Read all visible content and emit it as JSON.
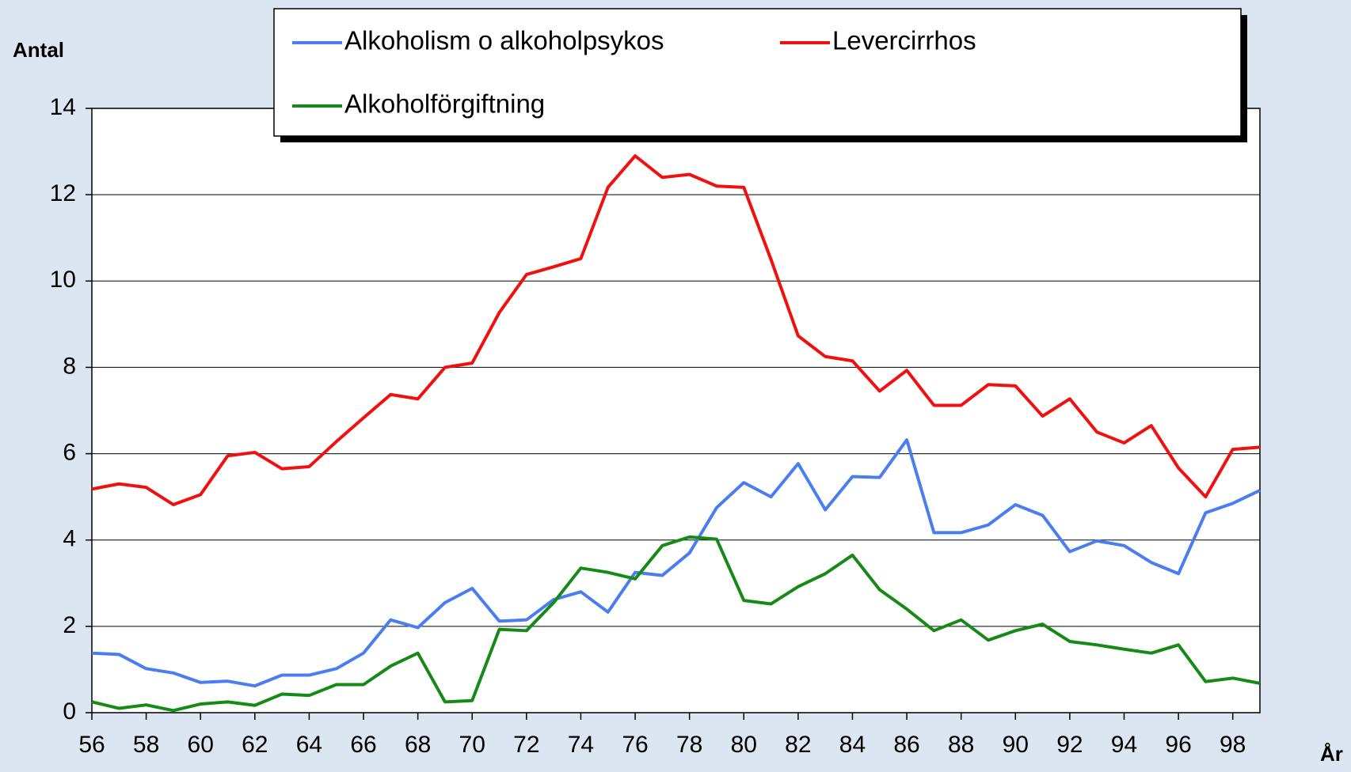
{
  "chart_data": {
    "type": "line",
    "x_axis_label": "År",
    "y_axis_label": "Antal",
    "x": [
      56,
      57,
      58,
      59,
      60,
      61,
      62,
      63,
      64,
      65,
      66,
      67,
      68,
      69,
      70,
      71,
      72,
      73,
      74,
      75,
      76,
      77,
      78,
      79,
      80,
      81,
      82,
      83,
      84,
      85,
      86,
      87,
      88,
      89,
      90,
      91,
      92,
      93,
      94,
      95,
      96,
      97,
      98,
      99
    ],
    "series": [
      {
        "name": "Alkoholism o alkoholpsykos",
        "color": "#4a7ef0",
        "values": [
          1.38,
          1.35,
          1.02,
          0.92,
          0.7,
          0.73,
          0.62,
          0.87,
          0.87,
          1.02,
          1.38,
          2.15,
          1.97,
          2.55,
          2.88,
          2.12,
          2.15,
          2.62,
          2.8,
          2.33,
          3.25,
          3.18,
          3.7,
          4.75,
          5.33,
          5.0,
          5.77,
          4.7,
          5.47,
          5.45,
          6.32,
          4.17,
          4.17,
          4.35,
          4.82,
          4.57,
          3.73,
          3.98,
          3.87,
          3.48,
          3.22,
          4.63,
          4.85,
          5.15
        ]
      },
      {
        "name": "Levercirrhos",
        "color": "#f01010",
        "values": [
          5.18,
          5.3,
          5.22,
          4.82,
          5.05,
          5.95,
          6.03,
          5.65,
          5.7,
          6.28,
          6.83,
          7.37,
          7.27,
          8.0,
          8.1,
          9.27,
          10.15,
          10.33,
          10.52,
          12.17,
          12.9,
          12.4,
          12.47,
          12.2,
          12.17,
          10.5,
          8.73,
          8.25,
          8.15,
          7.45,
          7.93,
          7.12,
          7.12,
          7.6,
          7.57,
          6.87,
          7.27,
          6.5,
          6.25,
          6.65,
          5.67,
          5.0,
          6.1,
          6.15
        ]
      },
      {
        "name": "Alkoholförgiftning",
        "color": "#168a16",
        "values": [
          0.25,
          0.1,
          0.18,
          0.05,
          0.2,
          0.25,
          0.17,
          0.43,
          0.4,
          0.65,
          0.65,
          1.08,
          1.38,
          0.25,
          0.28,
          1.93,
          1.9,
          2.55,
          3.35,
          3.25,
          3.1,
          3.87,
          4.07,
          4.02,
          2.6,
          2.52,
          2.92,
          3.22,
          3.65,
          2.85,
          2.4,
          1.9,
          2.15,
          1.68,
          1.9,
          2.05,
          1.65,
          1.57,
          1.47,
          1.38,
          1.57,
          0.72,
          0.8,
          0.68
        ]
      }
    ],
    "xlim": [
      56,
      99
    ],
    "xticks": [
      56,
      58,
      60,
      62,
      64,
      66,
      68,
      70,
      72,
      74,
      76,
      78,
      80,
      82,
      84,
      86,
      88,
      90,
      92,
      94,
      96,
      98
    ],
    "ylim": [
      0,
      14
    ],
    "yticks": [
      0,
      2,
      4,
      6,
      8,
      10,
      12,
      14
    ],
    "grid": true
  }
}
